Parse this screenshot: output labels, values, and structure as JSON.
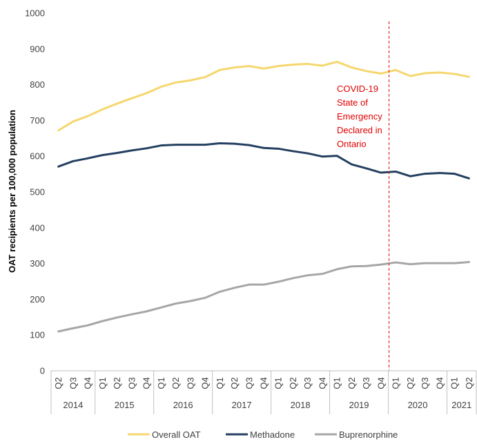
{
  "chart_data": {
    "type": "line",
    "ylabel": "OAT recipients per 100,000 population",
    "xlabel": "",
    "ylim": [
      0,
      1000
    ],
    "yticks": [
      "0",
      "100",
      "200",
      "300",
      "400",
      "500",
      "600",
      "700",
      "800",
      "900",
      "1000"
    ],
    "quarters": [
      "Q2",
      "Q3",
      "Q4",
      "Q1",
      "Q2",
      "Q3",
      "Q4",
      "Q1",
      "Q2",
      "Q3",
      "Q4",
      "Q1",
      "Q2",
      "Q3",
      "Q4",
      "Q1",
      "Q2",
      "Q3",
      "Q4",
      "Q1",
      "Q2",
      "Q3",
      "Q4",
      "Q1",
      "Q2",
      "Q3",
      "Q4",
      "Q1",
      "Q2"
    ],
    "years": [
      {
        "label": "2014",
        "start": 0,
        "end": 2
      },
      {
        "label": "2015",
        "start": 3,
        "end": 6
      },
      {
        "label": "2016",
        "start": 7,
        "end": 10
      },
      {
        "label": "2017",
        "start": 11,
        "end": 14
      },
      {
        "label": "2018",
        "start": 15,
        "end": 18
      },
      {
        "label": "2019",
        "start": 19,
        "end": 22
      },
      {
        "label": "2020",
        "start": 23,
        "end": 26
      },
      {
        "label": "2021",
        "start": 27,
        "end": 28
      }
    ],
    "series": [
      {
        "name": "Overall OAT",
        "color": "#f5d76e",
        "values": [
          672,
          697,
          712,
          731,
          747,
          762,
          776,
          794,
          806,
          812,
          821,
          841,
          848,
          852,
          845,
          852,
          856,
          858,
          853,
          864,
          848,
          838,
          831,
          841,
          824,
          832,
          834,
          830,
          822
        ]
      },
      {
        "name": "Methadone",
        "color": "#243f60",
        "values": [
          571,
          586,
          594,
          603,
          609,
          616,
          622,
          630,
          632,
          632,
          632,
          636,
          635,
          631,
          623,
          621,
          614,
          608,
          599,
          601,
          577,
          566,
          554,
          557,
          544,
          551,
          553,
          551,
          538
        ]
      },
      {
        "name": "Buprenorphine",
        "color": "#a6a6a6",
        "values": [
          110,
          119,
          127,
          139,
          149,
          158,
          166,
          177,
          188,
          195,
          204,
          221,
          232,
          241,
          241,
          249,
          259,
          267,
          271,
          284,
          292,
          293,
          297,
          303,
          298,
          301,
          301,
          301,
          304
        ]
      }
    ],
    "annotation": {
      "lines": [
        "COVID-19",
        "State of",
        "Emergency",
        "Declared in",
        "Ontario"
      ],
      "color": "#e00000",
      "after_index": 22
    },
    "grid": false,
    "legend_position": "bottom"
  }
}
